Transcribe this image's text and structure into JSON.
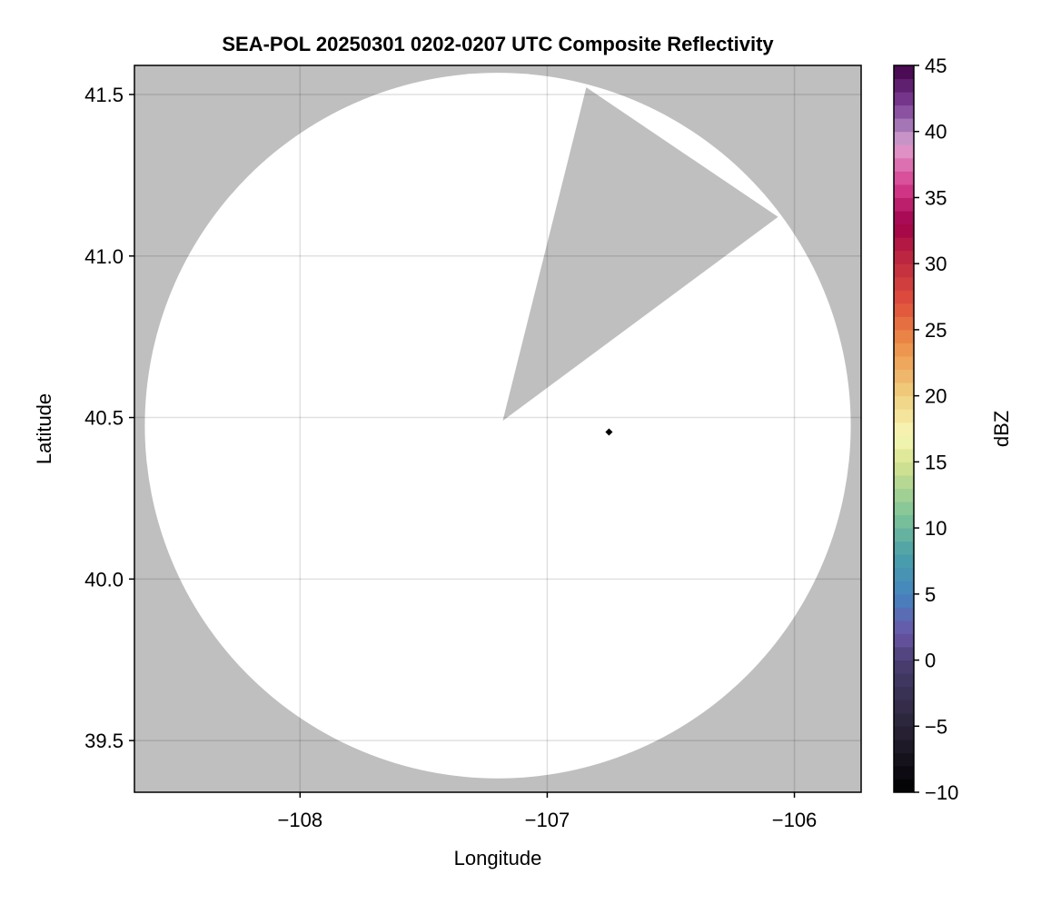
{
  "chart_data": {
    "type": "heatmap",
    "title": "SEA-POL 20250301 0202-0207 UTC Composite Reflectivity",
    "xlabel": "Longitude",
    "ylabel": "Latitude",
    "xlim": [
      -108.67,
      -105.73
    ],
    "ylim": [
      39.34,
      41.59
    ],
    "xticks": [
      -108,
      -107,
      -106
    ],
    "xtick_labels": [
      "−108",
      "−107",
      "−106"
    ],
    "yticks": [
      39.5,
      40.0,
      40.5,
      41.0,
      41.5
    ],
    "ytick_labels": [
      "39.5",
      "40.0",
      "40.5",
      "41.0",
      "41.5"
    ],
    "grid": true,
    "background_color": "#bfbfbf",
    "coverage_color": "#ffffff",
    "coverage_circle": {
      "center_lon": -107.2,
      "center_lat": 40.475,
      "radius_lon": 1.428,
      "radius_lat": 1.092
    },
    "blocked_sector": [
      [
        -107.18,
        40.49
      ],
      [
        -106.842,
        41.522
      ],
      [
        -106.066,
        41.121
      ]
    ],
    "marker": {
      "lon": -106.75,
      "lat": 40.455,
      "shape": "diamond",
      "color": "#000000"
    },
    "colorbar": {
      "label": "dBZ",
      "range": [
        -10,
        45
      ],
      "step": 1,
      "ticks": [
        -10,
        -5,
        0,
        5,
        10,
        15,
        20,
        25,
        30,
        35,
        40,
        45
      ],
      "tick_labels": [
        "−10",
        "−5",
        "0",
        "5",
        "10",
        "15",
        "20",
        "25",
        "30",
        "35",
        "40",
        "45"
      ],
      "color_stops": [
        [
          -10,
          "#000000"
        ],
        [
          -5,
          "#2a2438"
        ],
        [
          0,
          "#4a3f72"
        ],
        [
          2,
          "#6a55a8"
        ],
        [
          5,
          "#4585c0"
        ],
        [
          8,
          "#4aa0a8"
        ],
        [
          11,
          "#80c498"
        ],
        [
          15,
          "#d8e490"
        ],
        [
          17,
          "#f8f8b8"
        ],
        [
          20,
          "#f0d080"
        ],
        [
          24,
          "#ec8e48"
        ],
        [
          27,
          "#e0503c"
        ],
        [
          31,
          "#b82040"
        ],
        [
          33,
          "#a0004a"
        ],
        [
          36,
          "#d84090"
        ],
        [
          39,
          "#e0a0d0"
        ],
        [
          40,
          "#b088c0"
        ],
        [
          42,
          "#804098"
        ],
        [
          45,
          "#400048"
        ]
      ]
    }
  }
}
